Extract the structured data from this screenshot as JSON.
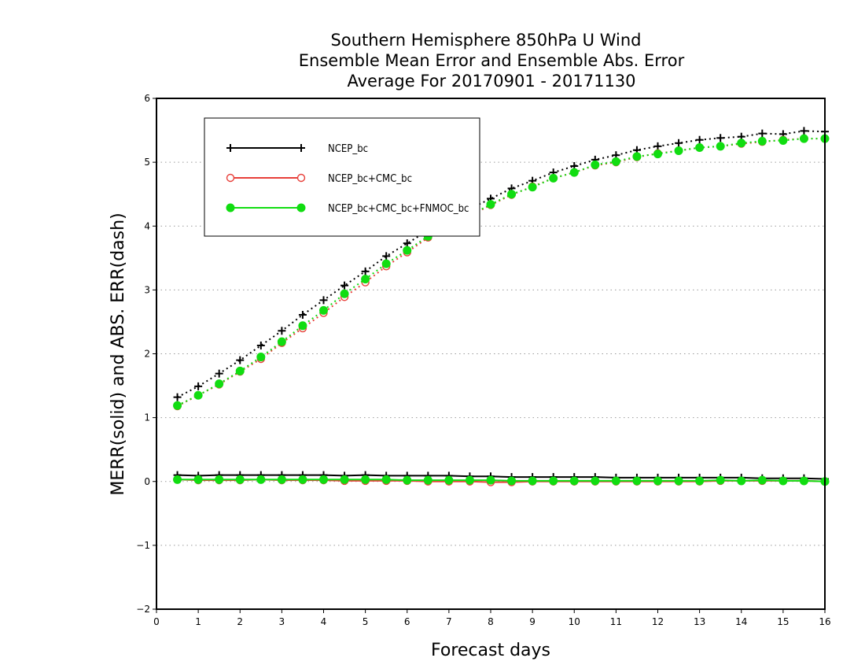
{
  "chart_data": {
    "type": "line",
    "title": [
      "Southern Hemisphere 850hPa U Wind",
      "Ensemble Mean Error and Ensemble Abs. Error",
      "Average For 20170901 - 20171130"
    ],
    "xlabel": "Forecast days",
    "ylabel": "MERR(solid) and ABS. ERR(dash)",
    "xlim": [
      0,
      16
    ],
    "ylim": [
      -2,
      6
    ],
    "xticks": [
      "0",
      "1",
      "2",
      "3",
      "4",
      "5",
      "6",
      "7",
      "8",
      "9",
      "10",
      "11",
      "12",
      "13",
      "14",
      "15",
      "16"
    ],
    "yticks": [
      "−2",
      "−1",
      "0",
      "1",
      "2",
      "3",
      "4",
      "5",
      "6"
    ],
    "grid": "horizontal dotted",
    "legend_position": "top-left",
    "x": [
      0.5,
      1,
      1.5,
      2,
      2.5,
      3,
      3.5,
      4,
      4.5,
      5,
      5.5,
      6,
      6.5,
      7,
      7.5,
      8,
      8.5,
      9,
      9.5,
      10,
      10.5,
      11,
      11.5,
      12,
      12.5,
      13,
      13.5,
      14,
      14.5,
      15,
      15.5,
      16
    ],
    "series": [
      {
        "name": "NCEP_bc",
        "color": "#000000",
        "marker": "plus",
        "abs_err": [
          1.32,
          1.49,
          1.69,
          1.9,
          2.13,
          2.36,
          2.61,
          2.84,
          3.07,
          3.29,
          3.53,
          3.73,
          3.93,
          4.1,
          4.27,
          4.43,
          4.59,
          4.71,
          4.84,
          4.94,
          5.04,
          5.11,
          5.19,
          5.25,
          5.3,
          5.35,
          5.38,
          5.4,
          5.45,
          5.44,
          5.49,
          5.48
        ],
        "mean_err": [
          0.1,
          0.09,
          0.1,
          0.1,
          0.1,
          0.1,
          0.1,
          0.1,
          0.09,
          0.1,
          0.09,
          0.09,
          0.09,
          0.09,
          0.08,
          0.08,
          0.07,
          0.07,
          0.07,
          0.07,
          0.07,
          0.06,
          0.06,
          0.06,
          0.06,
          0.06,
          0.06,
          0.06,
          0.05,
          0.05,
          0.05,
          0.04
        ]
      },
      {
        "name": "NCEP_bc+CMC_bc",
        "color": "#e8403a",
        "marker": "open-circle",
        "abs_err": [
          1.18,
          1.35,
          1.52,
          1.72,
          1.92,
          2.17,
          2.4,
          2.64,
          2.89,
          3.12,
          3.37,
          3.59,
          3.82,
          4.0,
          4.16,
          4.33,
          4.49,
          4.62,
          4.75,
          4.84,
          4.95,
          5.0,
          5.08,
          5.14,
          5.18,
          5.23,
          5.25,
          5.29,
          5.32,
          5.35,
          5.37,
          5.37
        ],
        "mean_err": [
          0.03,
          0.02,
          0.02,
          0.02,
          0.03,
          0.02,
          0.02,
          0.02,
          0.01,
          0.01,
          0.01,
          0.01,
          0.0,
          0.0,
          0.0,
          -0.01,
          -0.01,
          0.0,
          0.0,
          0.0,
          0.0,
          0.0,
          0.0,
          0.0,
          0.0,
          0.0,
          0.01,
          0.01,
          0.01,
          0.01,
          0.01,
          0.0
        ]
      },
      {
        "name": "NCEP_bc+CMC_bc+FNMOC_bc",
        "color": "#11dd11",
        "marker": "filled-circle",
        "abs_err": [
          1.19,
          1.35,
          1.53,
          1.73,
          1.95,
          2.19,
          2.44,
          2.68,
          2.94,
          3.17,
          3.41,
          3.62,
          3.84,
          4.01,
          4.17,
          4.34,
          4.5,
          4.61,
          4.75,
          4.84,
          4.96,
          5.01,
          5.09,
          5.13,
          5.18,
          5.23,
          5.25,
          5.3,
          5.33,
          5.34,
          5.37,
          5.37
        ],
        "mean_err": [
          0.03,
          0.03,
          0.03,
          0.03,
          0.03,
          0.03,
          0.03,
          0.03,
          0.03,
          0.03,
          0.03,
          0.02,
          0.02,
          0.02,
          0.02,
          0.02,
          0.01,
          0.01,
          0.01,
          0.01,
          0.01,
          0.01,
          0.01,
          0.01,
          0.01,
          0.01,
          0.02,
          0.01,
          0.02,
          0.01,
          0.01,
          0.0
        ]
      }
    ]
  }
}
